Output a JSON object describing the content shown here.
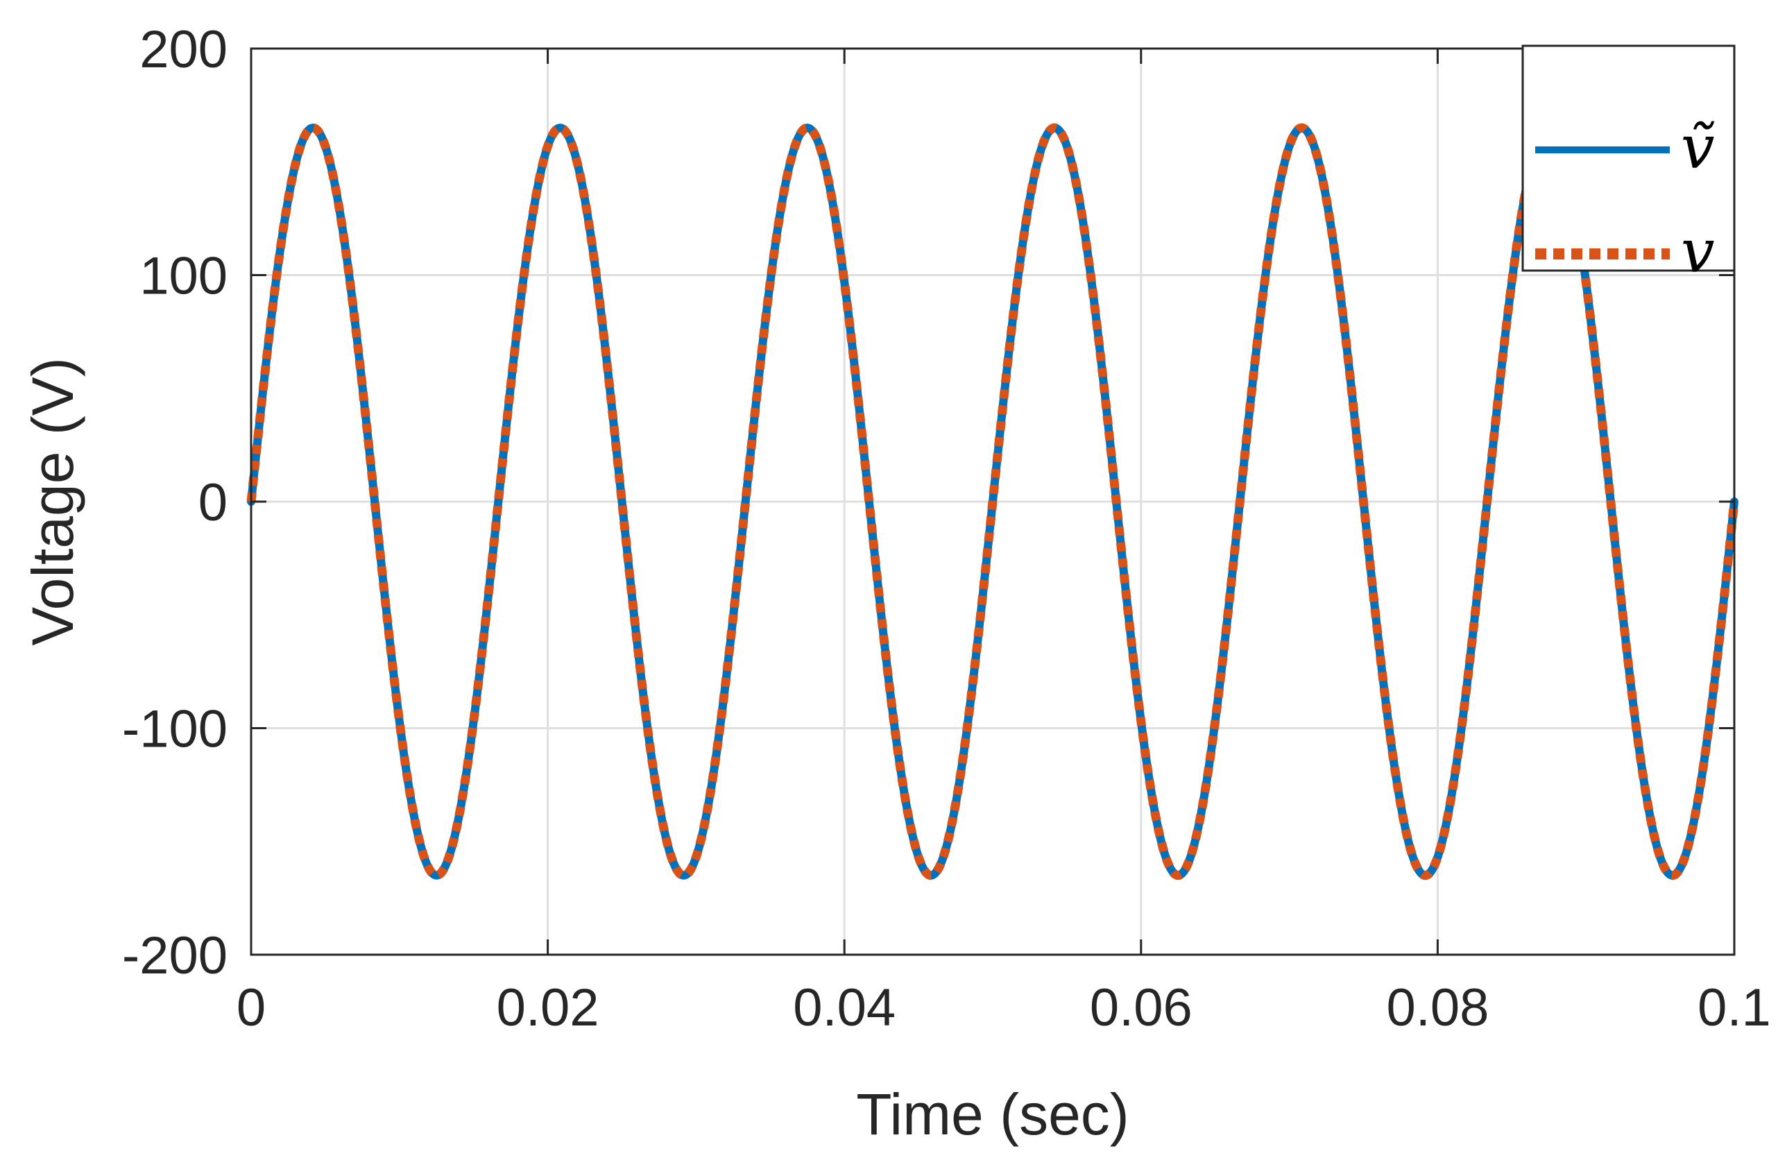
{
  "chart_data": {
    "type": "line",
    "title": "",
    "xlabel": "Time (sec)",
    "ylabel": "Voltage (V)",
    "xlim": [
      0,
      0.1
    ],
    "ylim": [
      -200,
      200
    ],
    "x_ticks": [
      0,
      0.02,
      0.04,
      0.06,
      0.08,
      0.1
    ],
    "x_tick_labels": [
      "0",
      "0.02",
      "0.04",
      "0.06",
      "0.08",
      "0.1"
    ],
    "y_ticks": [
      -200,
      -100,
      0,
      100,
      200
    ],
    "y_tick_labels": [
      "-200",
      "-100",
      "0",
      "100",
      "200"
    ],
    "grid": true,
    "legend_position": "top-right",
    "series": [
      {
        "name": "ṽ",
        "style": "solid",
        "color": "#0072BD",
        "waveform": "sine",
        "amplitude": 165,
        "frequency_hz": 60,
        "phase_deg": 0,
        "x_range": [
          0,
          0.1
        ]
      },
      {
        "name": "v",
        "style": "dotted",
        "color": "#D95319",
        "waveform": "sine",
        "amplitude": 165,
        "frequency_hz": 60,
        "phase_deg": 0,
        "x_range": [
          0,
          0.1
        ]
      }
    ]
  }
}
